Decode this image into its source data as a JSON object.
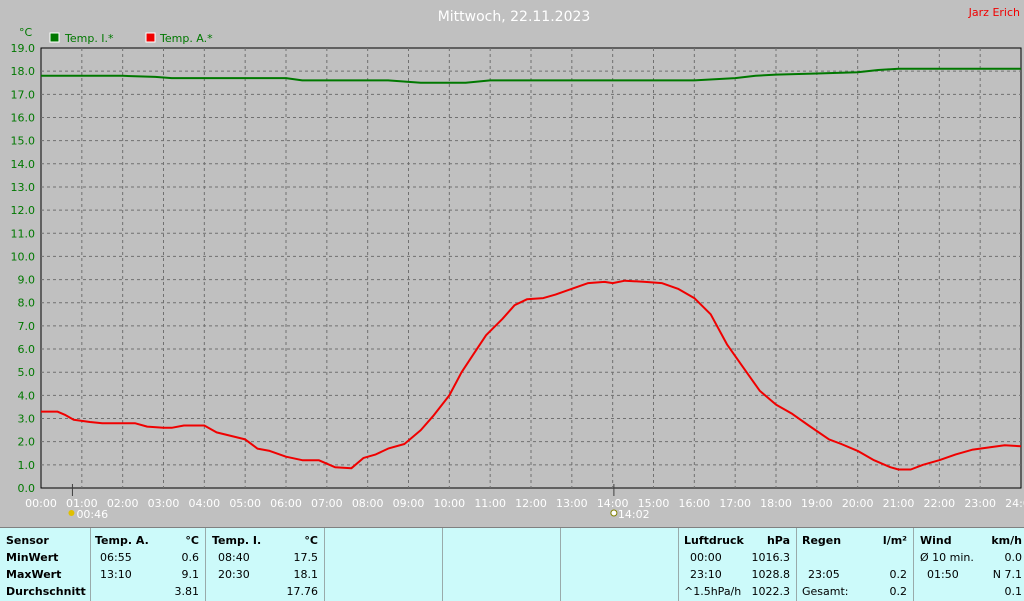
{
  "header": {
    "title": "Mittwoch, 22.11.2023",
    "author": "Jarz Erich"
  },
  "chart_data": {
    "type": "line",
    "y_unit": "°C",
    "ylim": [
      0,
      19
    ],
    "y_ticks": [
      "0.0",
      "1.0",
      "2.0",
      "3.0",
      "4.0",
      "5.0",
      "6.0",
      "7.0",
      "8.0",
      "9.0",
      "10.0",
      "11.0",
      "12.0",
      "13.0",
      "14.0",
      "15.0",
      "16.0",
      "17.0",
      "18.0",
      "19.0"
    ],
    "x_ticks": [
      "00:00",
      "01:00",
      "02:00",
      "03:00",
      "04:00",
      "05:00",
      "06:00",
      "07:00",
      "08:00",
      "09:00",
      "10:00",
      "11:00",
      "12:00",
      "13:00",
      "14:00",
      "15:00",
      "16:00",
      "17:00",
      "18:00",
      "19:00",
      "20:00",
      "21:00",
      "22:00",
      "23:00",
      "24:00"
    ],
    "xlim_hours": [
      0,
      24
    ],
    "grid": true,
    "legend_position": "top-left",
    "markers": [
      {
        "time": "00:46",
        "hour": 0.77,
        "symbol": "moon"
      },
      {
        "time": "14:02",
        "hour": 14.03,
        "symbol": "sun"
      }
    ],
    "series": [
      {
        "name": "Temp. I.*",
        "color": "#007800",
        "points": [
          [
            0,
            17.8
          ],
          [
            2,
            17.8
          ],
          [
            2.8,
            17.75
          ],
          [
            3.2,
            17.7
          ],
          [
            6,
            17.7
          ],
          [
            6.4,
            17.6
          ],
          [
            8.5,
            17.6
          ],
          [
            9.3,
            17.5
          ],
          [
            10.4,
            17.5
          ],
          [
            11,
            17.6
          ],
          [
            16,
            17.6
          ],
          [
            17,
            17.7
          ],
          [
            17.5,
            17.8
          ],
          [
            18,
            17.85
          ],
          [
            19,
            17.9
          ],
          [
            20,
            17.95
          ],
          [
            20.5,
            18.05
          ],
          [
            21,
            18.1
          ],
          [
            23.5,
            18.1
          ],
          [
            24,
            18.1
          ]
        ]
      },
      {
        "name": "Temp. A.*",
        "color": "#f00000",
        "points": [
          [
            0,
            3.3
          ],
          [
            0.4,
            3.3
          ],
          [
            0.6,
            3.15
          ],
          [
            0.8,
            2.95
          ],
          [
            1.2,
            2.85
          ],
          [
            1.5,
            2.8
          ],
          [
            2,
            2.8
          ],
          [
            2.3,
            2.8
          ],
          [
            2.6,
            2.65
          ],
          [
            3,
            2.6
          ],
          [
            3.2,
            2.6
          ],
          [
            3.5,
            2.7
          ],
          [
            4,
            2.7
          ],
          [
            4.3,
            2.4
          ],
          [
            5,
            2.1
          ],
          [
            5.3,
            1.7
          ],
          [
            5.6,
            1.6
          ],
          [
            6,
            1.35
          ],
          [
            6.4,
            1.2
          ],
          [
            6.8,
            1.2
          ],
          [
            7.2,
            0.9
          ],
          [
            7.6,
            0.85
          ],
          [
            7.9,
            1.3
          ],
          [
            8.2,
            1.45
          ],
          [
            8.5,
            1.7
          ],
          [
            8.9,
            1.9
          ],
          [
            9.3,
            2.5
          ],
          [
            9.6,
            3.1
          ],
          [
            10,
            4.0
          ],
          [
            10.3,
            5.0
          ],
          [
            10.6,
            5.8
          ],
          [
            10.9,
            6.6
          ],
          [
            11.3,
            7.3
          ],
          [
            11.6,
            7.9
          ],
          [
            11.9,
            8.15
          ],
          [
            12.3,
            8.2
          ],
          [
            12.6,
            8.35
          ],
          [
            13,
            8.6
          ],
          [
            13.4,
            8.85
          ],
          [
            13.8,
            8.9
          ],
          [
            14,
            8.85
          ],
          [
            14.3,
            8.95
          ],
          [
            14.8,
            8.9
          ],
          [
            15.2,
            8.85
          ],
          [
            15.6,
            8.6
          ],
          [
            16,
            8.2
          ],
          [
            16.4,
            7.5
          ],
          [
            16.8,
            6.2
          ],
          [
            17.2,
            5.2
          ],
          [
            17.6,
            4.2
          ],
          [
            18,
            3.6
          ],
          [
            18.4,
            3.2
          ],
          [
            18.8,
            2.7
          ],
          [
            19.3,
            2.1
          ],
          [
            19.6,
            1.9
          ],
          [
            20,
            1.6
          ],
          [
            20.4,
            1.2
          ],
          [
            20.8,
            0.9
          ],
          [
            21,
            0.8
          ],
          [
            21.3,
            0.8
          ],
          [
            21.6,
            1.0
          ],
          [
            22,
            1.2
          ],
          [
            22.4,
            1.45
          ],
          [
            22.8,
            1.65
          ],
          [
            23.2,
            1.75
          ],
          [
            23.6,
            1.85
          ],
          [
            24,
            1.8
          ]
        ]
      }
    ]
  },
  "stats": {
    "sensor": {
      "header": "Sensor",
      "rows": [
        "MinWert",
        "MaxWert",
        "Durchschnitt"
      ]
    },
    "temp_a": {
      "header": "Temp. A.",
      "unit": "°C",
      "min_time": "06:55",
      "min_value": "0.6",
      "max_time": "13:10",
      "max_value": "9.1",
      "avg": "3.81"
    },
    "temp_i": {
      "header": "Temp. I.",
      "unit": "°C",
      "min_time": "08:40",
      "min_value": "17.5",
      "max_time": "20:30",
      "max_value": "18.1",
      "avg": "17.76"
    },
    "pressure": {
      "header": "Luftdruck",
      "unit": "hPa",
      "min_time": "00:00",
      "min_value": "1016.3",
      "max_time": "23:10",
      "max_value": "1028.8",
      "trend_label": "^1.5hPa/h",
      "trend_value": "1022.3"
    },
    "rain": {
      "header": "Regen",
      "unit": "l/m²",
      "time": "23:05",
      "value": "0.2",
      "total_label": "Gesamt:",
      "total_value": "0.2"
    },
    "wind": {
      "header": "Wind",
      "unit": "km/h",
      "avg_label": "Ø 10 min.",
      "avg_value": "0.0",
      "max_time": "01:50",
      "max_value": "N 7.1",
      "last_value": "0.1"
    }
  }
}
